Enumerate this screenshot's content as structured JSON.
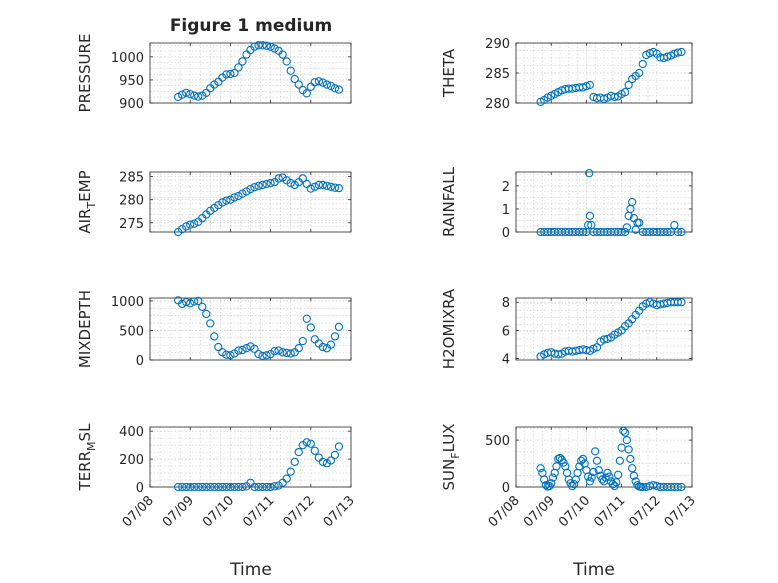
{
  "figure": {
    "title": "Figure 1 medium",
    "marker_color": "#0072BD",
    "xlabel": "Time",
    "xticklabels": [
      "07/08",
      "07/09",
      "07/10",
      "07/11",
      "07/12",
      "07/13"
    ],
    "xlim": [
      0,
      5
    ]
  },
  "chart_data": [
    {
      "type": "scatter",
      "name": "PRESSURE",
      "ylabel": "PRESSURE",
      "ylim": [
        900,
        1030
      ],
      "yticks": [
        900,
        950,
        1000
      ],
      "grid": true,
      "x": [
        0.7,
        0.8,
        0.9,
        1.0,
        1.1,
        1.2,
        1.3,
        1.4,
        1.5,
        1.6,
        1.7,
        1.8,
        1.9,
        2.0,
        2.1,
        2.2,
        2.3,
        2.4,
        2.5,
        2.6,
        2.7,
        2.8,
        2.9,
        3.0,
        3.1,
        3.2,
        3.3,
        3.4,
        3.5,
        3.6,
        3.7,
        3.8,
        3.9,
        4.0,
        4.1,
        4.2,
        4.3,
        4.4,
        4.5,
        4.6,
        4.7
      ],
      "y": [
        913,
        918,
        922,
        919,
        916,
        914,
        916,
        922,
        932,
        940,
        946,
        955,
        962,
        963,
        965,
        977,
        990,
        1005,
        1015,
        1022,
        1025,
        1025,
        1024,
        1022,
        1018,
        1013,
        1005,
        990,
        970,
        952,
        940,
        928,
        921,
        935,
        945,
        947,
        944,
        940,
        937,
        932,
        929
      ]
    },
    {
      "type": "scatter",
      "name": "THETA",
      "ylabel": "THETA",
      "ylim": [
        280,
        290
      ],
      "yticks": [
        280,
        285,
        290
      ],
      "grid": true,
      "x": [
        0.7,
        0.8,
        0.9,
        1.0,
        1.1,
        1.2,
        1.3,
        1.4,
        1.5,
        1.6,
        1.7,
        1.8,
        1.9,
        2.0,
        2.1,
        2.2,
        2.3,
        2.4,
        2.5,
        2.6,
        2.7,
        2.8,
        2.9,
        3.0,
        3.1,
        3.2,
        3.3,
        3.4,
        3.5,
        3.6,
        3.7,
        3.8,
        3.9,
        4.0,
        4.1,
        4.2,
        4.3,
        4.4,
        4.5,
        4.6,
        4.7
      ],
      "y": [
        280.2,
        280.5,
        280.9,
        281.2,
        281.5,
        281.8,
        282.1,
        282.3,
        282.4,
        282.4,
        282.5,
        282.6,
        282.6,
        282.8,
        283.0,
        281.0,
        280.8,
        280.9,
        280.7,
        280.9,
        281.2,
        281.0,
        281.1,
        281.5,
        281.8,
        283.0,
        284.0,
        284.5,
        285.0,
        286.5,
        288.0,
        288.3,
        288.5,
        288.2,
        287.6,
        287.5,
        287.7,
        287.9,
        288.2,
        288.4,
        288.5
      ]
    },
    {
      "type": "scatter",
      "name": "AIR_TEMP",
      "ylabel": "AIR",
      "ylabel_sub": "T",
      "ylabel_rest": "EMP",
      "ylim": [
        273,
        286
      ],
      "yticks": [
        275,
        280,
        285
      ],
      "grid": true,
      "x": [
        0.7,
        0.8,
        0.9,
        1.0,
        1.1,
        1.2,
        1.3,
        1.4,
        1.5,
        1.6,
        1.7,
        1.8,
        1.9,
        2.0,
        2.1,
        2.2,
        2.3,
        2.4,
        2.5,
        2.6,
        2.7,
        2.8,
        2.9,
        3.0,
        3.1,
        3.2,
        3.3,
        3.4,
        3.5,
        3.6,
        3.7,
        3.8,
        3.9,
        4.0,
        4.1,
        4.2,
        4.3,
        4.4,
        4.5,
        4.6,
        4.7
      ],
      "y": [
        273.0,
        273.6,
        274.2,
        274.6,
        274.8,
        275.2,
        276.0,
        276.8,
        277.6,
        278.2,
        278.8,
        279.4,
        279.8,
        280.0,
        280.5,
        280.8,
        281.3,
        281.8,
        282.3,
        282.7,
        283.0,
        283.2,
        283.4,
        283.6,
        283.8,
        284.6,
        284.8,
        284.2,
        283.6,
        283.2,
        283.8,
        284.6,
        283.4,
        282.4,
        282.8,
        283.2,
        283.2,
        283.0,
        282.8,
        282.6,
        282.5
      ]
    },
    {
      "type": "scatter",
      "name": "RAINFALL",
      "ylabel": "RAINFALL",
      "ylim": [
        0,
        2.6
      ],
      "yticks": [
        0,
        1,
        2
      ],
      "grid": true,
      "x": [
        0.7,
        0.8,
        0.9,
        1.0,
        1.1,
        1.2,
        1.3,
        1.4,
        1.5,
        1.6,
        1.7,
        1.8,
        1.9,
        2.0,
        2.05,
        2.08,
        2.1,
        2.14,
        2.2,
        2.3,
        2.4,
        2.5,
        2.6,
        2.7,
        2.8,
        2.9,
        3.0,
        3.1,
        3.15,
        3.2,
        3.25,
        3.3,
        3.35,
        3.4,
        3.45,
        3.5,
        3.6,
        3.7,
        3.8,
        3.9,
        4.0,
        4.1,
        4.2,
        4.3,
        4.4,
        4.5,
        4.6,
        4.7
      ],
      "y": [
        0,
        0,
        0,
        0,
        0,
        0,
        0,
        0,
        0,
        0,
        0,
        0,
        0,
        0,
        0.3,
        2.55,
        0.7,
        0.3,
        0,
        0,
        0,
        0,
        0,
        0,
        0,
        0,
        0,
        0,
        0.2,
        0.7,
        1.0,
        1.3,
        0.6,
        0.1,
        0.4,
        0.4,
        0,
        0,
        0,
        0,
        0,
        0,
        0,
        0,
        0,
        0.3,
        0,
        0
      ]
    },
    {
      "type": "scatter",
      "name": "MIXDEPTH",
      "ylabel": "MIXDEPTH",
      "ylim": [
        0,
        1050
      ],
      "yticks": [
        0,
        500,
        1000
      ],
      "grid": true,
      "x": [
        0.7,
        0.8,
        0.9,
        1.0,
        1.1,
        1.2,
        1.3,
        1.4,
        1.5,
        1.6,
        1.7,
        1.8,
        1.9,
        2.0,
        2.1,
        2.2,
        2.3,
        2.4,
        2.5,
        2.6,
        2.7,
        2.8,
        2.9,
        3.0,
        3.1,
        3.2,
        3.3,
        3.4,
        3.5,
        3.6,
        3.7,
        3.8,
        3.9,
        4.0,
        4.1,
        4.2,
        4.3,
        4.4,
        4.5,
        4.6,
        4.7
      ],
      "y": [
        1010,
        950,
        980,
        960,
        990,
        1000,
        900,
        780,
        620,
        400,
        220,
        130,
        90,
        80,
        110,
        160,
        170,
        200,
        230,
        190,
        100,
        70,
        80,
        100,
        150,
        160,
        130,
        120,
        110,
        130,
        200,
        320,
        700,
        550,
        350,
        280,
        220,
        200,
        260,
        400,
        560
      ]
    },
    {
      "type": "scatter",
      "name": "H2OMIXRA",
      "ylabel": "H2OMIXRA",
      "ylim": [
        3.9,
        8.3
      ],
      "yticks": [
        4,
        6,
        8
      ],
      "grid": true,
      "x": [
        0.7,
        0.8,
        0.9,
        1.0,
        1.1,
        1.2,
        1.3,
        1.4,
        1.5,
        1.6,
        1.7,
        1.8,
        1.9,
        2.0,
        2.1,
        2.2,
        2.3,
        2.4,
        2.5,
        2.6,
        2.7,
        2.8,
        2.9,
        3.0,
        3.1,
        3.2,
        3.3,
        3.4,
        3.5,
        3.6,
        3.7,
        3.8,
        3.9,
        4.0,
        4.1,
        4.2,
        4.3,
        4.4,
        4.5,
        4.6,
        4.7
      ],
      "y": [
        4.15,
        4.3,
        4.4,
        4.45,
        4.35,
        4.3,
        4.35,
        4.5,
        4.55,
        4.5,
        4.55,
        4.6,
        4.65,
        4.6,
        4.55,
        4.7,
        4.8,
        5.2,
        5.35,
        5.4,
        5.5,
        5.7,
        5.85,
        6.0,
        6.3,
        6.5,
        6.8,
        7.1,
        7.4,
        7.7,
        7.9,
        8.0,
        7.9,
        7.8,
        7.85,
        7.9,
        7.95,
        8.0,
        8.0,
        8.0,
        8.0
      ]
    },
    {
      "type": "scatter",
      "name": "TERR_MSL",
      "ylabel": "TERR",
      "ylabel_sub": "M",
      "ylabel_rest": "SL",
      "ylim": [
        0,
        430
      ],
      "yticks": [
        0,
        200,
        400
      ],
      "grid": true,
      "x": [
        0.7,
        0.8,
        0.9,
        1.0,
        1.1,
        1.2,
        1.3,
        1.4,
        1.5,
        1.6,
        1.7,
        1.8,
        1.9,
        2.0,
        2.1,
        2.2,
        2.3,
        2.4,
        2.5,
        2.6,
        2.7,
        2.8,
        2.9,
        3.0,
        3.1,
        3.2,
        3.3,
        3.4,
        3.5,
        3.6,
        3.7,
        3.8,
        3.9,
        4.0,
        4.1,
        4.2,
        4.3,
        4.4,
        4.5,
        4.6,
        4.7
      ],
      "y": [
        0,
        0,
        0,
        0,
        0,
        0,
        0,
        0,
        0,
        0,
        0,
        0,
        0,
        0,
        0,
        0,
        0,
        5,
        30,
        0,
        0,
        0,
        0,
        0,
        5,
        10,
        30,
        60,
        110,
        180,
        250,
        300,
        320,
        310,
        260,
        210,
        180,
        170,
        190,
        230,
        290
      ]
    },
    {
      "type": "scatter",
      "name": "SUN_FLUX",
      "ylabel": "SUN",
      "ylabel_sub": "F",
      "ylabel_rest": "LUX",
      "ylim": [
        0,
        640
      ],
      "yticks": [
        0,
        500
      ],
      "grid": true,
      "x": [
        0.7,
        0.75,
        0.8,
        0.85,
        0.9,
        0.95,
        1.0,
        1.05,
        1.1,
        1.15,
        1.2,
        1.25,
        1.3,
        1.35,
        1.4,
        1.45,
        1.5,
        1.55,
        1.6,
        1.65,
        1.7,
        1.75,
        1.8,
        1.85,
        1.9,
        1.95,
        2.0,
        2.05,
        2.1,
        2.15,
        2.2,
        2.25,
        2.3,
        2.35,
        2.4,
        2.45,
        2.5,
        2.55,
        2.6,
        2.65,
        2.7,
        2.75,
        2.8,
        2.85,
        2.9,
        2.95,
        3.0,
        3.05,
        3.1,
        3.15,
        3.2,
        3.25,
        3.3,
        3.35,
        3.4,
        3.45,
        3.5,
        3.55,
        3.6,
        3.7,
        3.8,
        3.9,
        4.0,
        4.1,
        4.2,
        4.3,
        4.4,
        4.5,
        4.6,
        4.7
      ],
      "y": [
        200,
        150,
        80,
        20,
        5,
        10,
        40,
        100,
        150,
        220,
        300,
        310,
        290,
        260,
        220,
        150,
        80,
        40,
        10,
        30,
        80,
        150,
        220,
        280,
        300,
        250,
        180,
        110,
        60,
        100,
        160,
        380,
        280,
        180,
        120,
        80,
        60,
        100,
        150,
        110,
        60,
        30,
        10,
        50,
        130,
        280,
        420,
        600,
        580,
        500,
        400,
        300,
        200,
        120,
        60,
        20,
        5,
        0,
        0,
        0,
        10,
        20,
        10,
        0,
        0,
        0,
        0,
        0,
        0,
        0
      ]
    }
  ]
}
